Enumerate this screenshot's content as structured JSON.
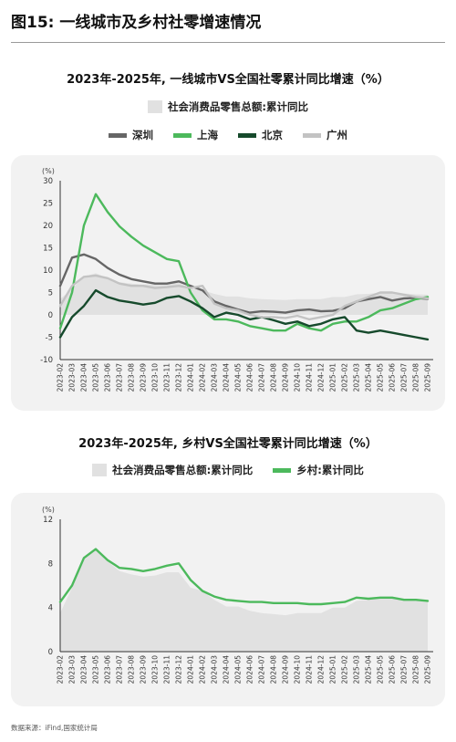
{
  "figure_title": "图15: 一线城市及乡村社零增速情况",
  "source": "数据来源：iFind,国家统计局",
  "chart_data": [
    {
      "type": "line",
      "title": "2023年-2025年, 一线城市VS全国社零累计同比增速（%）",
      "unit": "(%)",
      "ylim": [
        -10,
        30
      ],
      "yticks": [
        -10,
        -5,
        0,
        5,
        10,
        15,
        20,
        25,
        30
      ],
      "categories": [
        "2023-02",
        "2023-03",
        "2023-04",
        "2023-05",
        "2023-06",
        "2023-07",
        "2023-08",
        "2023-09",
        "2023-10",
        "2023-11",
        "2023-12",
        "2024-01",
        "2024-02",
        "2024-03",
        "2024-04",
        "2024-05",
        "2024-06",
        "2024-07",
        "2024-08",
        "2024-09",
        "2024-10",
        "2024-11",
        "2024-12",
        "2025-01",
        "2025-02",
        "2025-03",
        "2025-04",
        "2025-05",
        "2025-06",
        "2025-07",
        "2025-08",
        "2025-09"
      ],
      "area": {
        "name": "社会消费品零售总额:累计同比",
        "color": "#e1e1e1",
        "values": [
          3.5,
          5.8,
          8.5,
          9.3,
          8.2,
          7.3,
          7.0,
          6.8,
          6.9,
          7.2,
          7.2,
          5.8,
          5.5,
          4.7,
          4.1,
          4.1,
          3.7,
          3.5,
          3.4,
          3.3,
          3.5,
          3.5,
          3.5,
          4.0,
          4.0,
          4.6,
          4.7,
          5.0,
          5.0,
          4.8,
          4.6,
          4.5
        ]
      },
      "series": [
        {
          "name": "深圳",
          "color": "#666666",
          "values": [
            6.5,
            12.8,
            13.5,
            12.5,
            10.5,
            9.0,
            8.0,
            7.5,
            7.0,
            7.0,
            7.5,
            6.5,
            5.5,
            3.0,
            2.0,
            1.2,
            0.5,
            0.8,
            0.7,
            0.5,
            1.0,
            1.2,
            0.8,
            0.9,
            1.5,
            3.0,
            3.5,
            4.0,
            3.2,
            3.7,
            3.8,
            3.6
          ]
        },
        {
          "name": "上海",
          "color": "#4cb95c",
          "values": [
            -3.0,
            5.0,
            20.0,
            27.0,
            23.0,
            19.8,
            17.5,
            15.5,
            14.0,
            12.5,
            12.0,
            5.0,
            1.0,
            -1.0,
            -1.0,
            -1.5,
            -2.5,
            -3.0,
            -3.5,
            -3.5,
            -2.0,
            -3.0,
            -3.5,
            -2.0,
            -1.5,
            -1.5,
            -0.5,
            1.0,
            1.5,
            2.5,
            3.5,
            4.0
          ]
        },
        {
          "name": "北京",
          "color": "#164a2c",
          "values": [
            -5.0,
            -0.5,
            2.0,
            5.5,
            4.0,
            3.2,
            2.8,
            2.3,
            2.7,
            3.8,
            4.2,
            3.0,
            1.5,
            -0.5,
            0.5,
            0.0,
            -1.0,
            -0.5,
            -1.2,
            -2.0,
            -1.5,
            -2.5,
            -2.0,
            -1.0,
            -0.5,
            -3.5,
            -4.0,
            -3.5,
            -4.0,
            -4.5,
            -5.0,
            -5.5
          ]
        },
        {
          "name": "广州",
          "color": "#c3c3c3",
          "values": [
            2.0,
            6.5,
            8.5,
            8.8,
            8.2,
            7.0,
            6.5,
            6.5,
            6.0,
            6.2,
            6.5,
            6.0,
            6.5,
            2.5,
            1.5,
            1.0,
            0.0,
            -0.5,
            -0.5,
            -0.7,
            -0.2,
            -1.0,
            -0.5,
            0.0,
            2.0,
            3.0,
            4.0,
            5.0,
            5.0,
            4.5,
            4.0,
            3.7
          ]
        }
      ]
    },
    {
      "type": "line",
      "title": "2023年-2025年, 乡村VS全国社零累计同比增速（%）",
      "unit": "(%)",
      "ylim": [
        0,
        12
      ],
      "yticks": [
        0,
        4,
        8,
        12
      ],
      "categories": [
        "2023-02",
        "2023-03",
        "2023-04",
        "2023-05",
        "2023-06",
        "2023-07",
        "2023-08",
        "2023-09",
        "2023-10",
        "2023-11",
        "2023-12",
        "2024-01",
        "2024-02",
        "2024-03",
        "2024-04",
        "2024-05",
        "2024-06",
        "2024-07",
        "2024-08",
        "2024-09",
        "2024-10",
        "2024-11",
        "2024-12",
        "2025-01",
        "2025-02",
        "2025-03",
        "2025-04",
        "2025-05",
        "2025-06",
        "2025-07",
        "2025-08",
        "2025-09"
      ],
      "area": {
        "name": "社会消费品零售总额:累计同比",
        "color": "#e1e1e1",
        "values": [
          3.5,
          5.8,
          8.5,
          9.3,
          8.2,
          7.3,
          7.0,
          6.8,
          6.9,
          7.2,
          7.2,
          5.8,
          5.5,
          4.7,
          4.1,
          4.1,
          3.7,
          3.5,
          3.4,
          3.3,
          3.5,
          3.5,
          3.5,
          4.0,
          4.0,
          4.6,
          4.7,
          5.0,
          5.0,
          4.8,
          4.6,
          4.5
        ]
      },
      "series": [
        {
          "name": "乡村:累计同比",
          "color": "#4cb95c",
          "values": [
            4.5,
            6.0,
            8.5,
            9.3,
            8.3,
            7.6,
            7.5,
            7.3,
            7.5,
            7.8,
            8.0,
            6.5,
            5.5,
            5.0,
            4.7,
            4.6,
            4.5,
            4.5,
            4.4,
            4.4,
            4.4,
            4.3,
            4.3,
            4.4,
            4.5,
            4.9,
            4.8,
            4.9,
            4.9,
            4.7,
            4.7,
            4.6
          ]
        }
      ]
    }
  ]
}
